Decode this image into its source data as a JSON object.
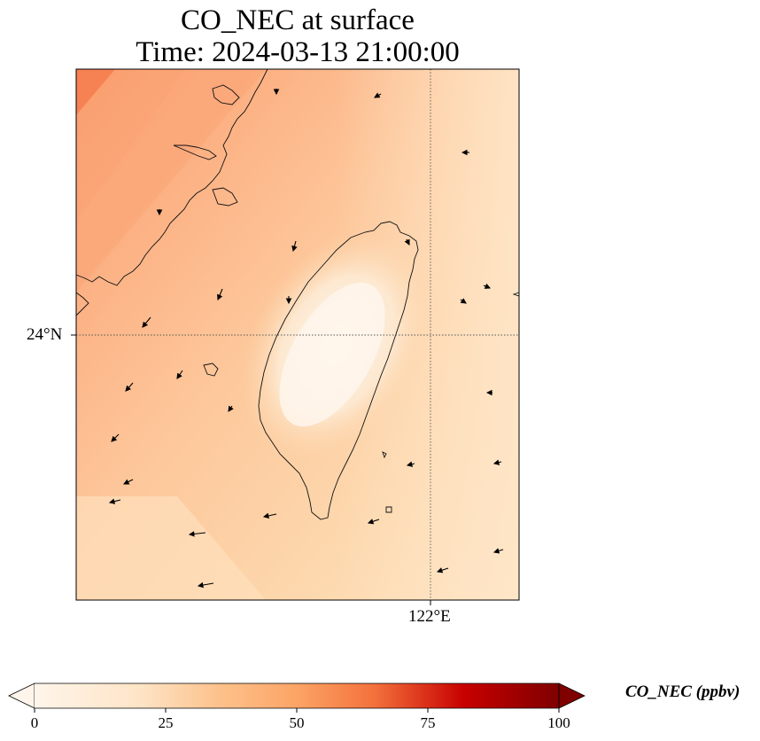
{
  "title": {
    "line1": "CO_NEC at surface",
    "line2": "Time: 2024-03-13 21:00:00"
  },
  "map": {
    "lat_tick_label": "24°N",
    "lon_tick_label": "122°E",
    "gridline_style": "dotted",
    "wind_vectors": "black arrows",
    "land_outline": "Taiwan, Fujian coast"
  },
  "colorbar": {
    "label": "CO_NEC (ppbv)",
    "ticks": [
      "0",
      "25",
      "50",
      "75",
      "100"
    ],
    "range": [
      0,
      100
    ],
    "colormap": "Oranges",
    "colors": [
      "#fff5eb",
      "#fdd9b2",
      "#fdae6b",
      "#f3703b",
      "#c70000",
      "#7f0000"
    ]
  }
}
